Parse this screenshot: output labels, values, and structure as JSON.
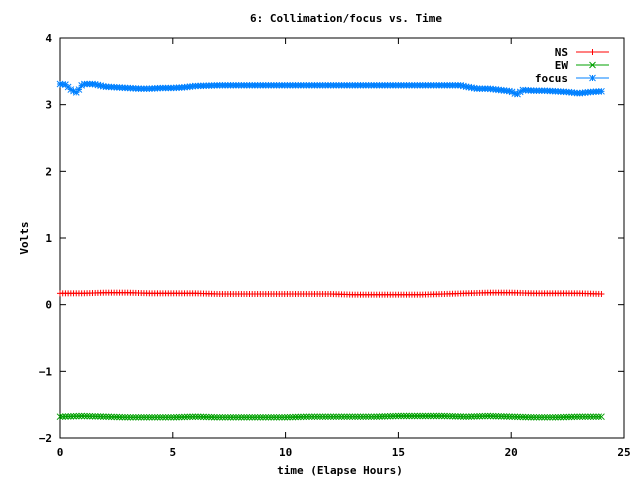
{
  "chart_data": {
    "type": "line",
    "title": "6: Collimation/focus vs. Time",
    "xlabel": "time (Elapse Hours)",
    "ylabel": "Volts",
    "xlim": [
      0,
      25
    ],
    "ylim": [
      -2,
      4
    ],
    "xticks": [
      0,
      5,
      10,
      15,
      20,
      25
    ],
    "yticks": [
      -2,
      -1,
      0,
      1,
      2,
      3,
      4
    ],
    "grid": false,
    "legend_position": "top-right",
    "series": [
      {
        "name": "NS",
        "color": "#ff0000",
        "marker": "plus",
        "x": [
          0,
          1,
          2,
          3,
          4,
          5,
          6,
          7,
          8,
          9,
          10,
          11,
          12,
          13,
          14,
          15,
          16,
          17,
          18,
          19,
          20,
          21,
          22,
          23,
          24
        ],
        "values": [
          0.17,
          0.17,
          0.18,
          0.18,
          0.17,
          0.17,
          0.17,
          0.16,
          0.16,
          0.16,
          0.16,
          0.16,
          0.16,
          0.15,
          0.15,
          0.15,
          0.15,
          0.16,
          0.17,
          0.18,
          0.18,
          0.17,
          0.17,
          0.17,
          0.16
        ]
      },
      {
        "name": "EW",
        "color": "#00a000",
        "marker": "x",
        "x": [
          0,
          1,
          2,
          3,
          4,
          5,
          6,
          7,
          8,
          9,
          10,
          11,
          12,
          13,
          14,
          15,
          16,
          17,
          18,
          19,
          20,
          21,
          22,
          23,
          24
        ],
        "values": [
          -1.68,
          -1.67,
          -1.68,
          -1.69,
          -1.69,
          -1.69,
          -1.68,
          -1.69,
          -1.69,
          -1.69,
          -1.69,
          -1.68,
          -1.68,
          -1.68,
          -1.68,
          -1.67,
          -1.67,
          -1.67,
          -1.68,
          -1.67,
          -1.68,
          -1.69,
          -1.69,
          -1.68,
          -1.68
        ]
      },
      {
        "name": "focus",
        "color": "#0080ff",
        "marker": "star",
        "x": [
          0,
          0.25,
          0.5,
          0.75,
          1,
          1.5,
          2,
          2.5,
          3,
          3.5,
          4,
          4.5,
          5,
          5.5,
          6,
          7,
          8,
          9,
          10,
          11,
          12,
          13,
          14,
          15,
          16,
          17,
          17.75,
          18,
          18.5,
          19,
          19.5,
          20,
          20.25,
          20.5,
          21,
          21.5,
          22,
          22.5,
          23,
          23.5,
          24
        ],
        "values": [
          3.31,
          3.3,
          3.22,
          3.18,
          3.31,
          3.31,
          3.27,
          3.26,
          3.25,
          3.24,
          3.24,
          3.25,
          3.25,
          3.26,
          3.28,
          3.29,
          3.29,
          3.29,
          3.29,
          3.29,
          3.29,
          3.29,
          3.29,
          3.29,
          3.29,
          3.29,
          3.29,
          3.27,
          3.24,
          3.24,
          3.22,
          3.2,
          3.15,
          3.22,
          3.21,
          3.21,
          3.2,
          3.19,
          3.17,
          3.19,
          3.2
        ]
      }
    ]
  }
}
